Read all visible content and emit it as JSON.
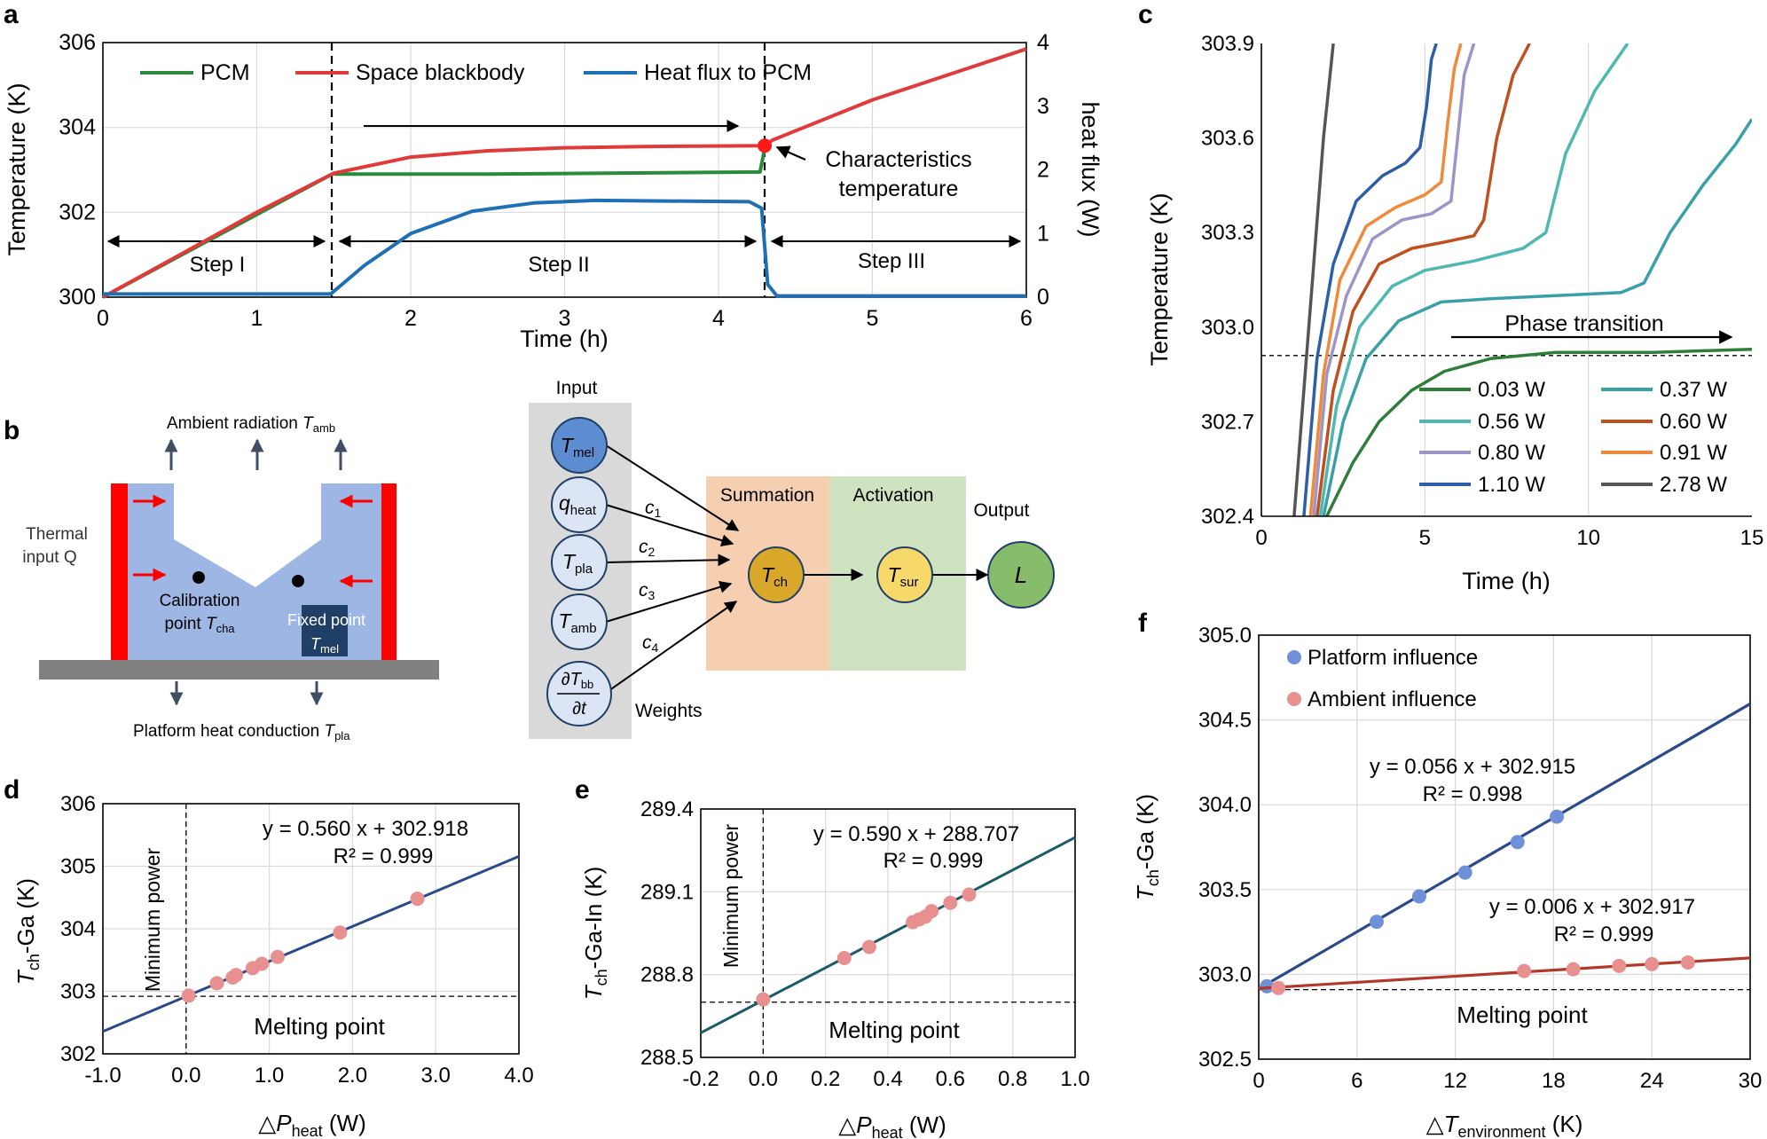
{
  "panel_labels": {
    "a": "a",
    "b": "b",
    "c": "c",
    "d": "d",
    "e": "e",
    "f": "f"
  },
  "schematic": {
    "ambient": "Ambient radiation ",
    "ambient_sym": "T",
    "ambient_sub": "amb",
    "thermal_l1": "Thermal",
    "thermal_l2": "input Q",
    "calib_l1": "Calibration",
    "calib_l2": "point ",
    "calib_sym": "T",
    "calib_sub": "cha",
    "fixed_l1": "Fixed point",
    "fixed_sym": "T",
    "fixed_sub": "mel",
    "platform": "Platform heat conduction ",
    "platform_sym": "T",
    "platform_sub": "pla"
  },
  "network": {
    "input_title": "Input",
    "summation": "Summation",
    "activation": "Activation",
    "output": "Output",
    "weights": "Weights",
    "nodes": [
      {
        "sym": "T",
        "sub": "mel"
      },
      {
        "sym": "q",
        "sub": "heat"
      },
      {
        "sym": "T",
        "sub": "pla"
      },
      {
        "sym": "T",
        "sub": "amb"
      }
    ],
    "deriv_num": "∂T",
    "deriv_num_sub": "bb",
    "deriv_den": "∂t",
    "weights_labels": [
      {
        "sym": "c",
        "sub": "1"
      },
      {
        "sym": "c",
        "sub": "2"
      },
      {
        "sym": "c",
        "sub": "3"
      },
      {
        "sym": "c",
        "sub": "4"
      }
    ],
    "tch": {
      "sym": "T",
      "sub": "ch"
    },
    "tsur": {
      "sym": "T",
      "sub": "sur"
    },
    "L": "L"
  },
  "colors": {
    "pcm": "#2a8a3c",
    "blackbody": "#e03a3a",
    "flux": "#1f6fb5",
    "c003": "#2f7d3a",
    "c037": "#3aa0a8",
    "c056": "#4fb8b2",
    "c060": "#c0501f",
    "c080": "#9b95c8",
    "c091": "#ef8a3a",
    "c110": "#2f5ea8",
    "c278": "#555555",
    "blue_pts": "#6f8fd8",
    "red_pts": "#e89090",
    "navy": "#2b4a8c",
    "teal": "#1a5a6a",
    "dark_red": "#b23a2a",
    "input_bg": "#d9d9d9",
    "sum_bg": "#f5cfb0",
    "act_bg": "#cfe3c0",
    "body_blue": "#9db6e3",
    "heater_red": "#ff0000",
    "platform_gray": "#808080"
  },
  "chart_data": [
    {
      "panel": "a",
      "type": "line",
      "xlabel": "Time (h)",
      "ylabel": "Temperature (K)",
      "y2label": "heat flux (W)",
      "xlim": [
        0,
        6
      ],
      "ylim": [
        300,
        306
      ],
      "y2lim": [
        0,
        4
      ],
      "xticks": [
        "0",
        "1",
        "2",
        "3",
        "4",
        "5",
        "6"
      ],
      "yticks": [
        "300",
        "302",
        "304",
        "306"
      ],
      "y2ticks": [
        "0",
        "1",
        "2",
        "3",
        "4"
      ],
      "legend": [
        "PCM",
        "Space blackbody",
        "Heat flux to PCM"
      ],
      "steps": [
        "Step I",
        "Step II",
        "Step III"
      ],
      "annotation_l1": "Characteristics",
      "annotation_l2": "temperature",
      "series": [
        {
          "name": "PCM",
          "axis": "left",
          "x": [
            0,
            1.5,
            1.51,
            2.5,
            4.27,
            4.3
          ],
          "y": [
            300,
            302.92,
            302.9,
            302.9,
            302.95,
            303.5
          ]
        },
        {
          "name": "Space blackbody",
          "axis": "left",
          "x": [
            0,
            0.5,
            1.0,
            1.5,
            2.0,
            2.5,
            3.0,
            3.5,
            4.3,
            4.35,
            5.0,
            5.5,
            6.0
          ],
          "y": [
            300,
            301.0,
            302.0,
            302.92,
            303.3,
            303.45,
            303.52,
            303.55,
            303.57,
            303.7,
            304.65,
            305.25,
            305.85
          ]
        },
        {
          "name": "Heat flux to PCM",
          "axis": "right",
          "x": [
            0,
            1.48,
            1.7,
            2.0,
            2.4,
            2.8,
            3.2,
            4.2,
            4.28,
            4.32,
            4.38,
            6.0
          ],
          "y": [
            0.05,
            0.05,
            0.5,
            1.0,
            1.35,
            1.48,
            1.52,
            1.5,
            1.4,
            0.2,
            0.02,
            0.02
          ]
        }
      ]
    },
    {
      "panel": "c",
      "type": "line",
      "xlabel": "Time (h)",
      "ylabel": "Temperature (K)",
      "xlim": [
        0,
        15
      ],
      "ylim": [
        302.4,
        303.9
      ],
      "xticks": [
        "0",
        "5",
        "10",
        "15"
      ],
      "yticks": [
        "302.4",
        "302.7",
        "303.0",
        "303.3",
        "303.6",
        "303.9"
      ],
      "annotation": "Phase transition",
      "series": [
        {
          "name": "0.03 W",
          "x": [
            2.0,
            2.8,
            3.6,
            4.6,
            5.6,
            7.0,
            9.0,
            12.0,
            15.0
          ],
          "y": [
            302.4,
            302.57,
            302.7,
            302.8,
            302.86,
            302.9,
            302.92,
            302.92,
            302.93
          ]
        },
        {
          "name": "0.37 W",
          "x": [
            1.9,
            2.5,
            3.2,
            4.2,
            5.5,
            7.0,
            9.0,
            11.0,
            11.7,
            12.5,
            13.5,
            14.5,
            15.0
          ],
          "y": [
            302.4,
            302.7,
            302.9,
            303.02,
            303.08,
            303.09,
            303.1,
            303.11,
            303.14,
            303.3,
            303.45,
            303.58,
            303.66
          ]
        },
        {
          "name": "0.56 W",
          "x": [
            1.8,
            2.3,
            3.0,
            4.0,
            5.0,
            6.5,
            8.0,
            8.7,
            9.3,
            10.2,
            11.2
          ],
          "y": [
            302.4,
            302.75,
            303.0,
            303.13,
            303.18,
            303.21,
            303.25,
            303.3,
            303.55,
            303.75,
            303.9
          ]
        },
        {
          "name": "0.60 W",
          "x": [
            1.7,
            2.2,
            2.8,
            3.6,
            4.6,
            5.6,
            6.5,
            6.8,
            7.2,
            7.7,
            8.2
          ],
          "y": [
            302.4,
            302.8,
            303.05,
            303.2,
            303.25,
            303.27,
            303.29,
            303.34,
            303.6,
            303.8,
            303.9
          ]
        },
        {
          "name": "0.80 W",
          "x": [
            1.6,
            2.0,
            2.6,
            3.4,
            4.3,
            5.2,
            5.8,
            6.0,
            6.2,
            6.5
          ],
          "y": [
            302.4,
            302.85,
            303.1,
            303.28,
            303.34,
            303.36,
            303.4,
            303.6,
            303.8,
            303.9
          ]
        },
        {
          "name": "0.91 W",
          "x": [
            1.5,
            1.9,
            2.4,
            3.2,
            4.1,
            5.0,
            5.5,
            5.7,
            5.9,
            6.1
          ],
          "y": [
            302.4,
            302.85,
            303.15,
            303.32,
            303.38,
            303.42,
            303.46,
            303.65,
            303.82,
            303.9
          ]
        },
        {
          "name": "1.10 W",
          "x": [
            1.3,
            1.7,
            2.2,
            2.9,
            3.7,
            4.4,
            4.85,
            5.05,
            5.2,
            5.35
          ],
          "y": [
            302.4,
            302.9,
            303.2,
            303.4,
            303.48,
            303.52,
            303.57,
            303.7,
            303.85,
            303.9
          ]
        },
        {
          "name": "2.78 W",
          "x": [
            1.0,
            1.3,
            1.6,
            1.9,
            2.2
          ],
          "y": [
            302.4,
            302.8,
            303.2,
            303.6,
            303.9
          ]
        }
      ],
      "reference_y": 302.91
    },
    {
      "panel": "d",
      "type": "scatter",
      "xlabel_pre": "△",
      "xlabel_sym": "P",
      "xlabel_sub": "heat",
      "xlabel_post": " (W)",
      "ylabel_sym": "T",
      "ylabel_sub": "ch",
      "ylabel_post": "-Ga (K)",
      "vertical_label": "Minimum power",
      "hline_label": "Melting point",
      "xlim": [
        -1.0,
        4.0
      ],
      "ylim": [
        302,
        306
      ],
      "xticks": [
        "-1.0",
        "0.0",
        "1.0",
        "2.0",
        "3.0",
        "4.0"
      ],
      "yticks": [
        "302",
        "303",
        "304",
        "305",
        "306"
      ],
      "equation": "y = 0.560 x + 302.918",
      "r2": "R² = 0.999",
      "fit": {
        "slope": 0.56,
        "intercept": 302.918
      },
      "reference_y": 302.92,
      "points": {
        "x": [
          0.03,
          0.37,
          0.56,
          0.6,
          0.8,
          0.91,
          1.1,
          1.85,
          2.78
        ],
        "y": [
          302.93,
          303.13,
          303.22,
          303.26,
          303.37,
          303.44,
          303.55,
          303.94,
          304.48
        ]
      }
    },
    {
      "panel": "e",
      "type": "scatter",
      "xlabel_pre": "△",
      "xlabel_sym": "P",
      "xlabel_sub": "heat",
      "xlabel_post": " (W)",
      "ylabel_sym": "T",
      "ylabel_sub": "ch",
      "ylabel_post": "-Ga-In (K)",
      "vertical_label": "Minimum power",
      "hline_label": "Melting point",
      "xlim": [
        -0.2,
        1.0
      ],
      "ylim": [
        288.5,
        289.4
      ],
      "xticks": [
        "-0.2",
        "0.0",
        "0.2",
        "0.4",
        "0.6",
        "0.8",
        "1.0"
      ],
      "yticks": [
        "288.5",
        "288.8",
        "289.1",
        "289.4"
      ],
      "equation": "y = 0.590 x + 288.707",
      "r2": "R² = 0.999",
      "fit": {
        "slope": 0.59,
        "intercept": 288.707
      },
      "reference_y": 288.7,
      "points": {
        "x": [
          0.0,
          0.26,
          0.34,
          0.48,
          0.5,
          0.52,
          0.54,
          0.6,
          0.66
        ],
        "y": [
          288.71,
          288.86,
          288.9,
          288.99,
          289.0,
          289.01,
          289.03,
          289.06,
          289.09
        ]
      }
    },
    {
      "panel": "f",
      "type": "scatter",
      "xlabel_pre": "△",
      "xlabel_sym": "T",
      "xlabel_sub": "environment",
      "xlabel_post": "  (K)",
      "ylabel_sym": "T",
      "ylabel_sub": "ch",
      "ylabel_post": "-Ga (K)",
      "hline_label": "Melting point",
      "xlim": [
        0,
        30
      ],
      "ylim": [
        302.5,
        305.0
      ],
      "xticks": [
        "0",
        "6",
        "12",
        "18",
        "24",
        "30"
      ],
      "yticks": [
        "302.5",
        "303.0",
        "303.5",
        "304.0",
        "304.5",
        "305.0"
      ],
      "legend": [
        "Platform influence",
        "Ambient influence"
      ],
      "reference_y": 302.91,
      "series": [
        {
          "name": "Platform influence",
          "equation": "y = 0.056 x + 302.915",
          "r2": "R² = 0.998",
          "fit": {
            "slope": 0.056,
            "intercept": 302.915
          },
          "x": [
            0.5,
            7.2,
            9.8,
            12.6,
            15.8,
            18.2
          ],
          "y": [
            302.93,
            303.31,
            303.46,
            303.6,
            303.78,
            303.93
          ]
        },
        {
          "name": "Ambient influence",
          "equation": "y = 0.006 x + 302.917",
          "r2": "R² = 0.999",
          "fit": {
            "slope": 0.006,
            "intercept": 302.917
          },
          "x": [
            1.2,
            16.2,
            19.2,
            22.0,
            24.0,
            26.2
          ],
          "y": [
            302.92,
            303.02,
            303.03,
            303.05,
            303.06,
            303.07
          ]
        }
      ]
    }
  ]
}
